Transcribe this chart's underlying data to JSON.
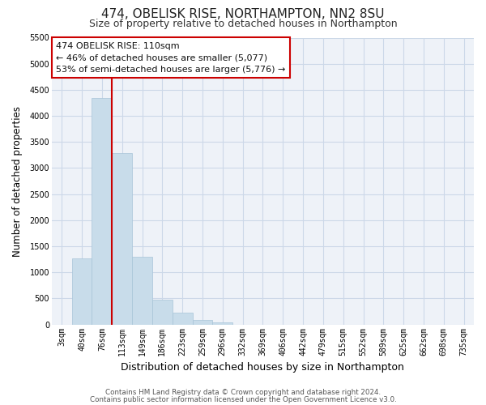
{
  "title": "474, OBELISK RISE, NORTHAMPTON, NN2 8SU",
  "subtitle": "Size of property relative to detached houses in Northampton",
  "xlabel": "Distribution of detached houses by size in Northampton",
  "ylabel": "Number of detached properties",
  "bar_labels": [
    "3sqm",
    "40sqm",
    "76sqm",
    "113sqm",
    "149sqm",
    "186sqm",
    "223sqm",
    "259sqm",
    "296sqm",
    "332sqm",
    "369sqm",
    "406sqm",
    "442sqm",
    "479sqm",
    "515sqm",
    "552sqm",
    "589sqm",
    "625sqm",
    "662sqm",
    "698sqm",
    "735sqm"
  ],
  "bar_values": [
    0,
    1270,
    4340,
    3290,
    1295,
    480,
    230,
    85,
    40,
    0,
    0,
    0,
    0,
    0,
    0,
    0,
    0,
    0,
    0,
    0,
    0
  ],
  "bar_color": "#c8dcea",
  "bar_edge_color": "#a8c4d8",
  "grid_color": "#ccd8e8",
  "vline_color": "#cc0000",
  "vline_x": 2.5,
  "ylim": [
    0,
    5500
  ],
  "yticks": [
    0,
    500,
    1000,
    1500,
    2000,
    2500,
    3000,
    3500,
    4000,
    4500,
    5000,
    5500
  ],
  "annotation_title": "474 OBELISK RISE: 110sqm",
  "annotation_line1": "← 46% of detached houses are smaller (5,077)",
  "annotation_line2": "53% of semi-detached houses are larger (5,776) →",
  "annotation_box_color": "#ffffff",
  "annotation_box_edge": "#cc0000",
  "plot_bg_color": "#eef2f8",
  "footer1": "Contains HM Land Registry data © Crown copyright and database right 2024.",
  "footer2": "Contains public sector information licensed under the Open Government Licence v3.0.",
  "title_fontsize": 11,
  "subtitle_fontsize": 9,
  "tick_fontsize": 7,
  "ylabel_fontsize": 8.5,
  "xlabel_fontsize": 9
}
